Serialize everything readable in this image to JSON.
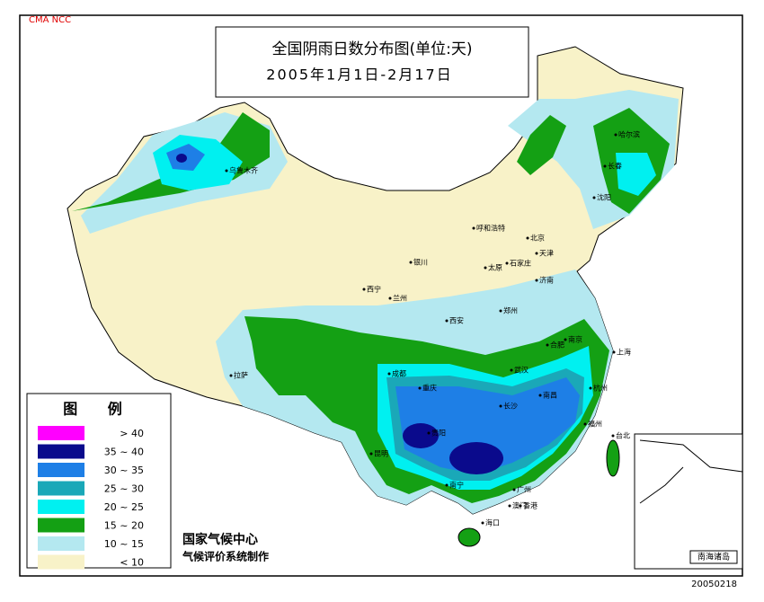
{
  "header": {
    "source": "CMA NCC",
    "title": "全国阴雨日数分布图(单位:天)",
    "subtitle": "2005年1月1日-2月17日"
  },
  "legend": {
    "title": "图 例",
    "items": [
      {
        "label": "> 40",
        "color": "#ff00ff"
      },
      {
        "label": "35 ~ 40",
        "color": "#0a0a8c"
      },
      {
        "label": "30 ~ 35",
        "color": "#1e7fe6"
      },
      {
        "label": "25 ~ 30",
        "color": "#1aa8b8"
      },
      {
        "label": "20 ~ 25",
        "color": "#00f0f0"
      },
      {
        "label": "15 ~ 20",
        "color": "#14a014"
      },
      {
        "label": "10 ~ 15",
        "color": "#b4e8f0"
      },
      {
        "label": "< 10",
        "color": "#f8f2c8"
      }
    ]
  },
  "credit": {
    "org": "国家气候中心",
    "system": "气候评价系统制作"
  },
  "date_stamp": "20050218",
  "inset": {
    "label": "南海诸岛"
  },
  "cities": [
    "乌鲁木齐",
    "哈尔滨",
    "长春",
    "沈阳",
    "呼和浩特",
    "北京",
    "天津",
    "银川",
    "太原",
    "石家庄",
    "济南",
    "西宁",
    "兰州",
    "西安",
    "郑州",
    "合肥",
    "南京",
    "上海",
    "拉萨",
    "成都",
    "武汉",
    "重庆",
    "杭州",
    "长沙",
    "南昌",
    "贵阳",
    "福州",
    "昆明",
    "台北",
    "南宁",
    "广州",
    "香港",
    "澳门",
    "海口"
  ]
}
